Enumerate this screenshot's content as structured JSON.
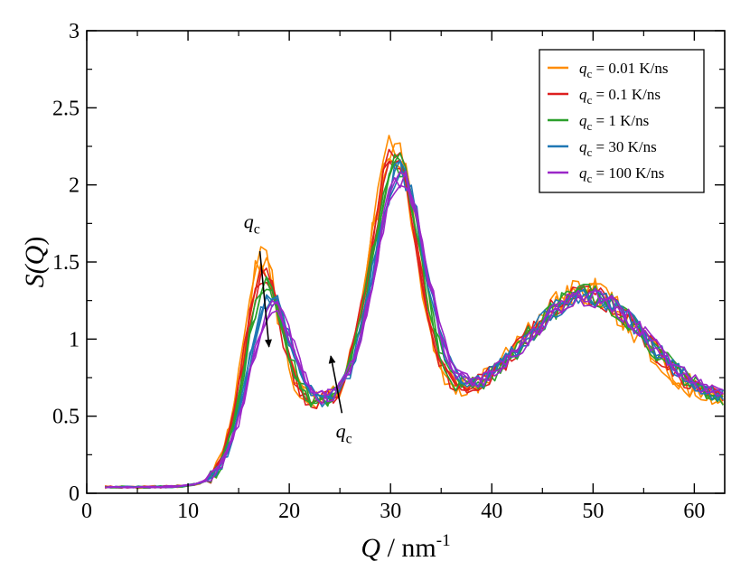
{
  "chart_data": {
    "type": "line",
    "title": "",
    "xlabel": {
      "symbol": "Q",
      "unit": " / nm",
      "exponent": "-1"
    },
    "ylabel": {
      "prefix": "S(",
      "symbol": "Q",
      "suffix": ")"
    },
    "xlim": [
      0,
      63
    ],
    "ylim": [
      0,
      3
    ],
    "xticks": [
      0,
      10,
      20,
      30,
      40,
      50,
      60
    ],
    "xtick_labels": [
      "0",
      "10",
      "20",
      "30",
      "40",
      "50",
      "60"
    ],
    "yticks": [
      0,
      0.5,
      1,
      1.5,
      2,
      2.5,
      3
    ],
    "ytick_labels": [
      "0",
      "0.5",
      "1",
      "1.5",
      "2",
      "2.5",
      "3"
    ],
    "grid": false,
    "legend_position": "top-right",
    "legend_symbol": "q",
    "legend_subscript": "c",
    "series": [
      {
        "name": "= 0.01 K/ns",
        "color": "#ff8c00",
        "noise": 0.09,
        "peaks": [
          {
            "x": 17.2,
            "a": 1.03,
            "w": 1.7
          },
          {
            "x": 30.3,
            "a": 1.64,
            "w": 2.3
          },
          {
            "x": 49.0,
            "a": 0.73,
            "w": 5.6
          }
        ]
      },
      {
        "name": "= 0.1 K/ns",
        "color": "#dd1f1f",
        "noise": 0.07,
        "peaks": [
          {
            "x": 17.3,
            "a": 0.93,
            "w": 1.75
          },
          {
            "x": 30.4,
            "a": 1.6,
            "w": 2.35
          },
          {
            "x": 49.2,
            "a": 0.72,
            "w": 5.7
          }
        ]
      },
      {
        "name": "= 1 K/ns",
        "color": "#2ca02c",
        "noise": 0.07,
        "peaks": [
          {
            "x": 17.6,
            "a": 0.87,
            "w": 1.8
          },
          {
            "x": 30.6,
            "a": 1.56,
            "w": 2.4
          },
          {
            "x": 49.3,
            "a": 0.71,
            "w": 5.8
          }
        ]
      },
      {
        "name": "= 30 K/ns",
        "color": "#1f77b4",
        "noise": 0.06,
        "peaks": [
          {
            "x": 18.0,
            "a": 0.74,
            "w": 1.95
          },
          {
            "x": 30.9,
            "a": 1.5,
            "w": 2.5
          },
          {
            "x": 49.4,
            "a": 0.7,
            "w": 5.9
          }
        ]
      },
      {
        "name": "= 100 K/ns",
        "color": "#9a27c8",
        "noise": 0.06,
        "peaks": [
          {
            "x": 18.3,
            "a": 0.66,
            "w": 2.05
          },
          {
            "x": 31.0,
            "a": 1.45,
            "w": 2.55
          },
          {
            "x": 49.5,
            "a": 0.69,
            "w": 6.0
          }
        ]
      }
    ],
    "baseline_description": "smooth rise from 0.04 near Q=2 to a 0.58 background plateau beyond Q~20",
    "annotations": [
      {
        "label_symbol": "q",
        "label_subscript": "c",
        "arrow_from": [
          17.1,
          1.57
        ],
        "arrow_to": [
          18.0,
          0.95
        ],
        "label_at": [
          15.5,
          1.72
        ]
      },
      {
        "label_symbol": "q",
        "label_subscript": "c",
        "arrow_from": [
          25.2,
          0.52
        ],
        "arrow_to": [
          24.1,
          0.89
        ],
        "label_at": [
          24.6,
          0.36
        ]
      }
    ]
  }
}
